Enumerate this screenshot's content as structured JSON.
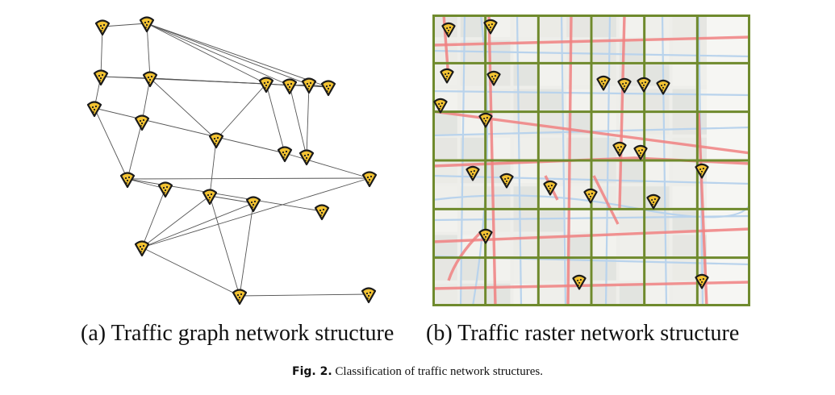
{
  "colors": {
    "marker_fill": "#f3c332",
    "marker_stroke": "#1a1a1a",
    "edge": "#555555",
    "grid_line": "#6f8a2d",
    "road_red": "#f08080",
    "road_blue": "#b9d3ec",
    "map_bg": "#eeeeea"
  },
  "panel_a": {
    "caption": "(a) Traffic graph network structure",
    "marker_icon": "map-pin-icon"
  },
  "panel_b": {
    "caption": "(b) Traffic raster network structure",
    "marker_icon": "map-pin-icon",
    "grid_rows": 6,
    "grid_cols": 6
  },
  "figure": {
    "label": "Fig. 2.",
    "caption": "Classification of traffic network structures."
  }
}
